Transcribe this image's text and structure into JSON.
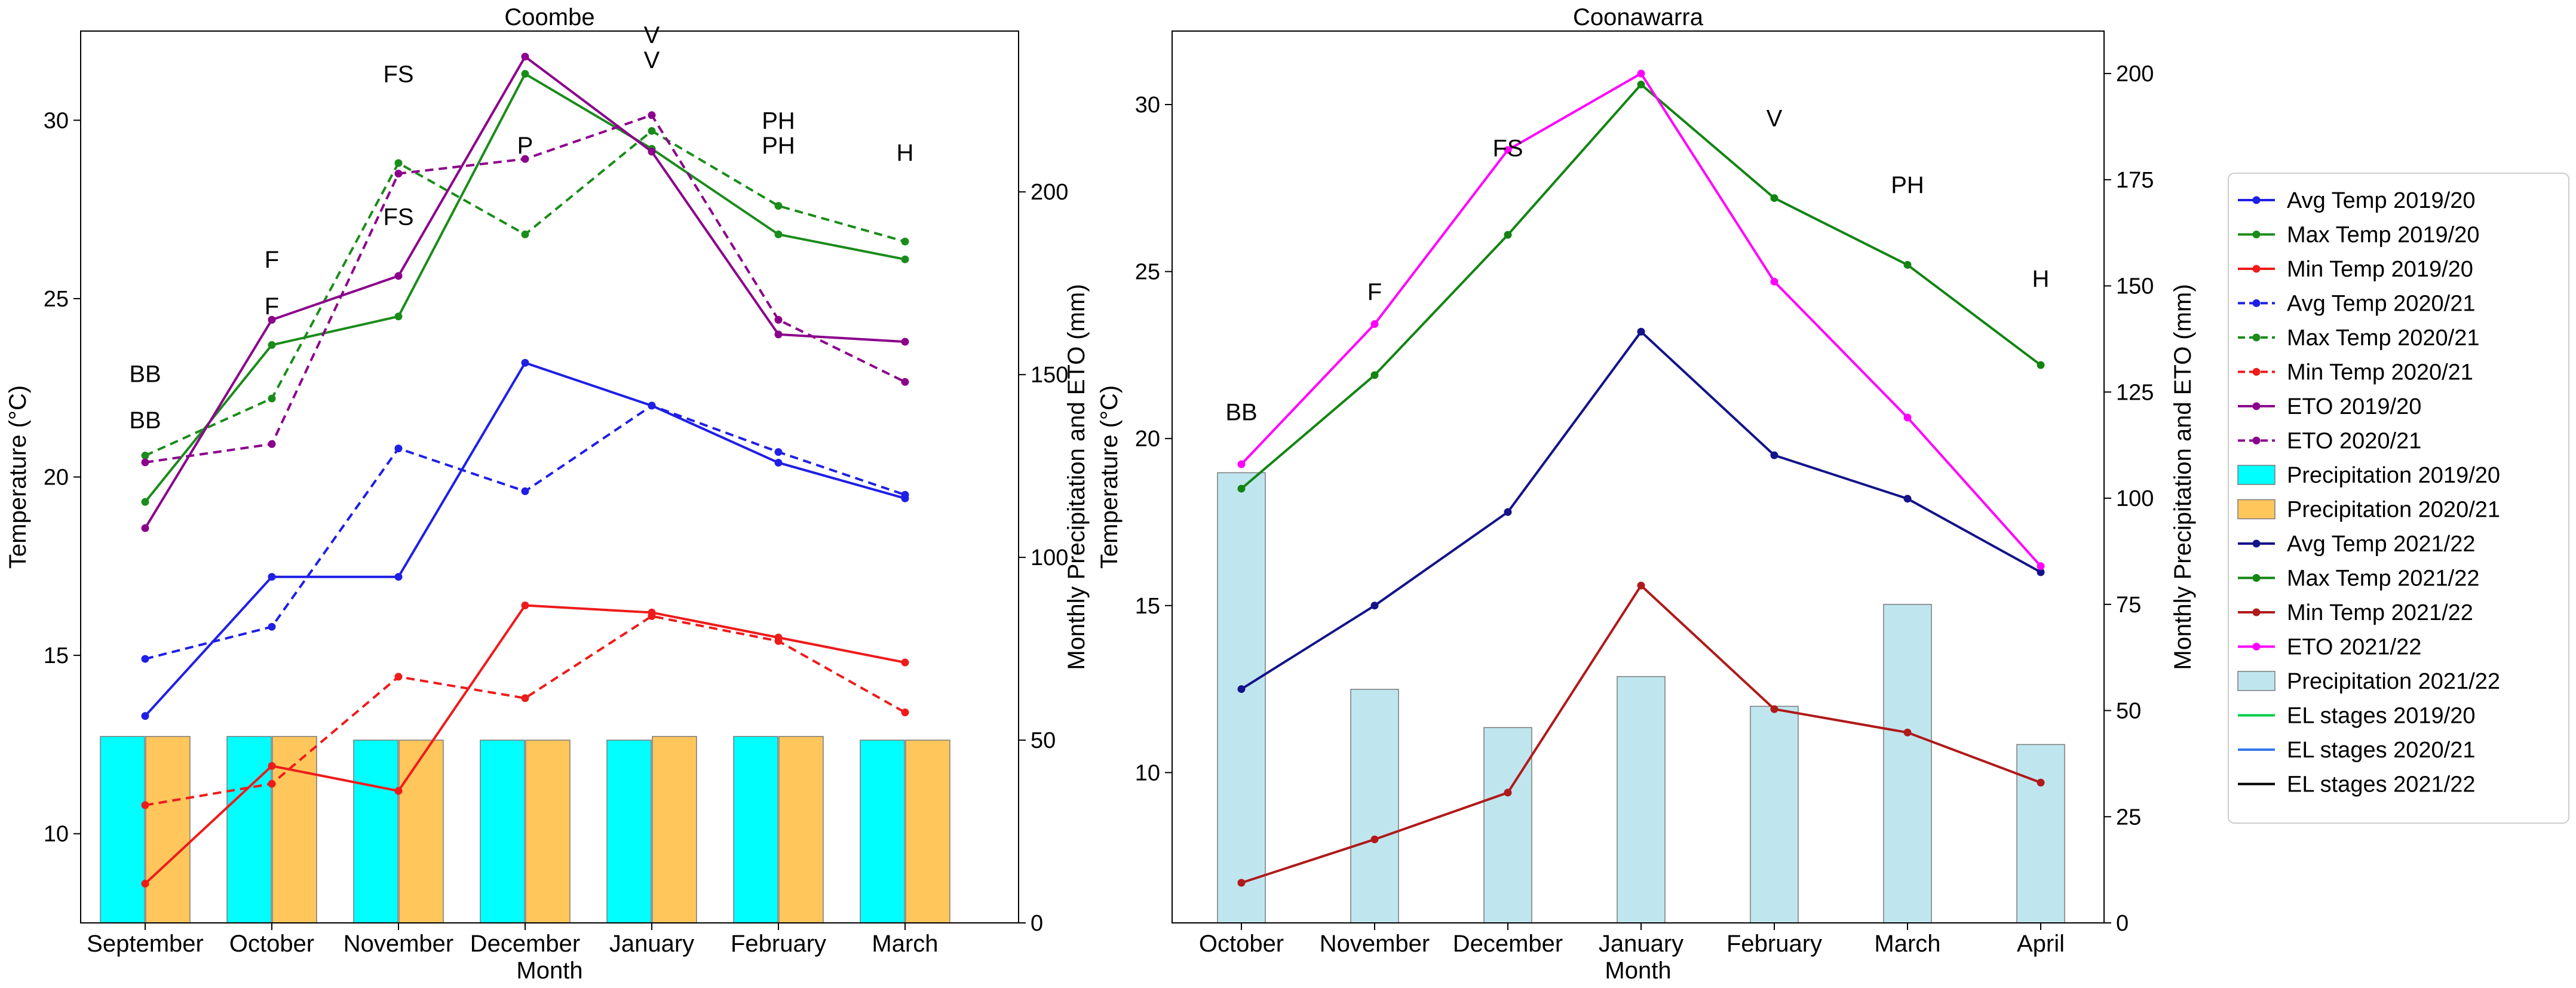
{
  "colors": {
    "avg1920": "#1f1fe6",
    "max1920": "#1a8c1a",
    "min1920": "#ee1b1b",
    "eto1920": "#8b008b",
    "eto2021": "#8b008b",
    "precip1920": "#00ffff",
    "precip2021": "#ffc65c",
    "avg2122": "#13138a",
    "max2122": "#128412",
    "min2122": "#b01a1a",
    "eto2122": "#ff00ff",
    "precip2122": "#bfe6ef",
    "el1920": "#00cc44",
    "el2021": "#3377ee",
    "el2122": "#000000"
  },
  "chart_data": [
    {
      "type": "line",
      "title": "Coombe",
      "xlabel": "Month",
      "ylabel": "Temperature (°C)",
      "y2label": "Monthly Precipitation and ETO (mm)",
      "categories": [
        "September",
        "October",
        "November",
        "December",
        "January",
        "February",
        "March"
      ],
      "ylim": [
        7.5,
        32.5
      ],
      "yticks": [
        10,
        15,
        20,
        25,
        30
      ],
      "y2lim": [
        0,
        244
      ],
      "y2ticks": [
        0,
        50,
        100,
        150,
        200
      ],
      "series": [
        {
          "name": "Avg Temp 2019/20",
          "axis": "left",
          "color": "avg1920",
          "dash": false,
          "values": [
            13.3,
            17.2,
            17.2,
            23.2,
            22.0,
            20.4,
            19.4
          ]
        },
        {
          "name": "Max Temp 2019/20",
          "axis": "left",
          "color": "max1920",
          "dash": false,
          "values": [
            19.3,
            23.7,
            24.5,
            31.3,
            29.2,
            26.8,
            26.1
          ]
        },
        {
          "name": "Min Temp 2019/20",
          "axis": "left",
          "color": "min1920",
          "dash": false,
          "values": [
            8.6,
            11.9,
            11.2,
            16.4,
            16.2,
            15.5,
            14.8
          ]
        },
        {
          "name": "Avg Temp 2020/21",
          "axis": "left",
          "color": "avg1920",
          "dash": true,
          "values": [
            14.9,
            15.8,
            20.8,
            19.6,
            22.0,
            20.7,
            19.5
          ]
        },
        {
          "name": "Max Temp 2020/21",
          "axis": "left",
          "color": "max1920",
          "dash": true,
          "values": [
            20.6,
            22.2,
            28.8,
            26.8,
            29.7,
            27.6,
            26.6
          ]
        },
        {
          "name": "Min Temp 2020/21",
          "axis": "left",
          "color": "min1920",
          "dash": true,
          "values": [
            10.8,
            11.4,
            14.4,
            13.8,
            16.1,
            15.4,
            13.4
          ]
        },
        {
          "name": "ETO 2019/20",
          "axis": "right",
          "color": "eto1920",
          "dash": false,
          "values": [
            108,
            165,
            177,
            237,
            211,
            161,
            159
          ]
        },
        {
          "name": "ETO 2020/21",
          "axis": "right",
          "color": "eto2021",
          "dash": true,
          "values": [
            126,
            131,
            205,
            209,
            221,
            165,
            148
          ]
        }
      ],
      "bars": [
        {
          "name": "Precipitation 2019/20",
          "color": "precip1920",
          "values": [
            51,
            51,
            50,
            50,
            50,
            51,
            50
          ]
        },
        {
          "name": "Precipitation 2020/21",
          "color": "precip2021",
          "values": [
            51,
            51,
            50,
            50,
            51,
            51,
            50
          ]
        }
      ],
      "annotations": [
        {
          "text": "BB",
          "x": 0,
          "y": 22.9,
          "color": "el2021"
        },
        {
          "text": "BB",
          "x": 0,
          "y": 21.6,
          "color": "el1920"
        },
        {
          "text": "F",
          "x": 1,
          "y": 26.1,
          "color": "el1920"
        },
        {
          "text": "F",
          "x": 1,
          "y": 24.8,
          "color": "el2021"
        },
        {
          "text": "FS",
          "x": 2,
          "y": 31.3,
          "color": "el2021"
        },
        {
          "text": "FS",
          "x": 2,
          "y": 27.3,
          "color": "el1920"
        },
        {
          "text": "P",
          "x": 3,
          "y": 29.3,
          "color": "el2021"
        },
        {
          "text": "V",
          "x": 4,
          "y": 32.4,
          "color": "el2021"
        },
        {
          "text": "V",
          "x": 4,
          "y": 31.7,
          "color": "el1920"
        },
        {
          "text": "PH",
          "x": 5,
          "y": 30.0,
          "color": "el2021"
        },
        {
          "text": "PH",
          "x": 5,
          "y": 29.3,
          "color": "el1920"
        },
        {
          "text": "H",
          "x": 6,
          "y": 29.1,
          "color": "el2021"
        }
      ]
    },
    {
      "type": "line",
      "title": "Coonawarra",
      "xlabel": "Month",
      "ylabel": "Temperature (°C)",
      "y2label": "Monthly Precipitation and ETO (mm)",
      "categories": [
        "October",
        "November",
        "December",
        "January",
        "February",
        "March",
        "April"
      ],
      "ylim": [
        5.5,
        32.2
      ],
      "yticks": [
        10,
        15,
        20,
        25,
        30
      ],
      "y2lim": [
        0,
        210
      ],
      "y2ticks": [
        0,
        25,
        50,
        75,
        100,
        125,
        150,
        175,
        200
      ],
      "series": [
        {
          "name": "Avg Temp 2021/22",
          "axis": "left",
          "color": "avg2122",
          "dash": false,
          "values": [
            12.5,
            15.0,
            17.8,
            23.2,
            19.5,
            18.2,
            16.0
          ]
        },
        {
          "name": "Max Temp 2021/22",
          "axis": "left",
          "color": "max2122",
          "dash": false,
          "values": [
            18.5,
            21.9,
            26.1,
            30.6,
            27.2,
            25.2,
            22.2
          ]
        },
        {
          "name": "Min Temp 2021/22",
          "axis": "left",
          "color": "min2122",
          "dash": false,
          "values": [
            6.7,
            8.0,
            9.4,
            15.6,
            11.9,
            11.2,
            9.7
          ]
        },
        {
          "name": "ETO 2021/22",
          "axis": "right",
          "color": "eto2122",
          "dash": false,
          "values": [
            108,
            141,
            182,
            200,
            151,
            119,
            84
          ]
        }
      ],
      "bars": [
        {
          "name": "Precipitation 2021/22",
          "color": "precip2122",
          "values": [
            106,
            55,
            46,
            58,
            51,
            75,
            42
          ]
        }
      ],
      "annotations": [
        {
          "text": "BB",
          "x": 0,
          "y": 20.8,
          "color": "el2122"
        },
        {
          "text": "F",
          "x": 1,
          "y": 24.4,
          "color": "el2122"
        },
        {
          "text": "FS",
          "x": 2,
          "y": 28.7,
          "color": "el2122"
        },
        {
          "text": "V",
          "x": 4,
          "y": 29.6,
          "color": "el2122"
        },
        {
          "text": "PH",
          "x": 5,
          "y": 27.6,
          "color": "el2122"
        },
        {
          "text": "H",
          "x": 6,
          "y": 24.8,
          "color": "el2122"
        }
      ]
    }
  ],
  "legend": {
    "placement": "right",
    "entries": [
      {
        "label": "Avg Temp 2019/20",
        "kind": "line",
        "color": "avg1920",
        "dash": false,
        "marker": true
      },
      {
        "label": "Max Temp 2019/20",
        "kind": "line",
        "color": "max1920",
        "dash": false,
        "marker": true
      },
      {
        "label": "Min Temp 2019/20",
        "kind": "line",
        "color": "min1920",
        "dash": false,
        "marker": true
      },
      {
        "label": "Avg Temp 2020/21",
        "kind": "line",
        "color": "avg1920",
        "dash": true,
        "marker": true
      },
      {
        "label": "Max Temp 2020/21",
        "kind": "line",
        "color": "max1920",
        "dash": true,
        "marker": true
      },
      {
        "label": "Min Temp 2020/21",
        "kind": "line",
        "color": "min1920",
        "dash": true,
        "marker": true
      },
      {
        "label": "ETO 2019/20",
        "kind": "line",
        "color": "eto1920",
        "dash": false,
        "marker": true
      },
      {
        "label": "ETO 2020/21",
        "kind": "line",
        "color": "eto2021",
        "dash": true,
        "marker": true
      },
      {
        "label": "Precipitation 2019/20",
        "kind": "patch",
        "color": "precip1920"
      },
      {
        "label": "Precipitation 2020/21",
        "kind": "patch",
        "color": "precip2021"
      },
      {
        "label": "Avg Temp 2021/22",
        "kind": "line",
        "color": "avg2122",
        "dash": false,
        "marker": true
      },
      {
        "label": "Max Temp 2021/22",
        "kind": "line",
        "color": "max2122",
        "dash": false,
        "marker": true
      },
      {
        "label": "Min Temp 2021/22",
        "kind": "line",
        "color": "min2122",
        "dash": false,
        "marker": true
      },
      {
        "label": "ETO 2021/22",
        "kind": "line",
        "color": "eto2122",
        "dash": false,
        "marker": true
      },
      {
        "label": "Precipitation 2021/22",
        "kind": "patch",
        "color": "precip2122"
      },
      {
        "label": "EL stages 2019/20",
        "kind": "line",
        "color": "el1920",
        "dash": false,
        "marker": false
      },
      {
        "label": "EL stages 2020/21",
        "kind": "line",
        "color": "el2021",
        "dash": false,
        "marker": false
      },
      {
        "label": "EL stages 2021/22",
        "kind": "line",
        "color": "el2122",
        "dash": false,
        "marker": false
      }
    ]
  }
}
